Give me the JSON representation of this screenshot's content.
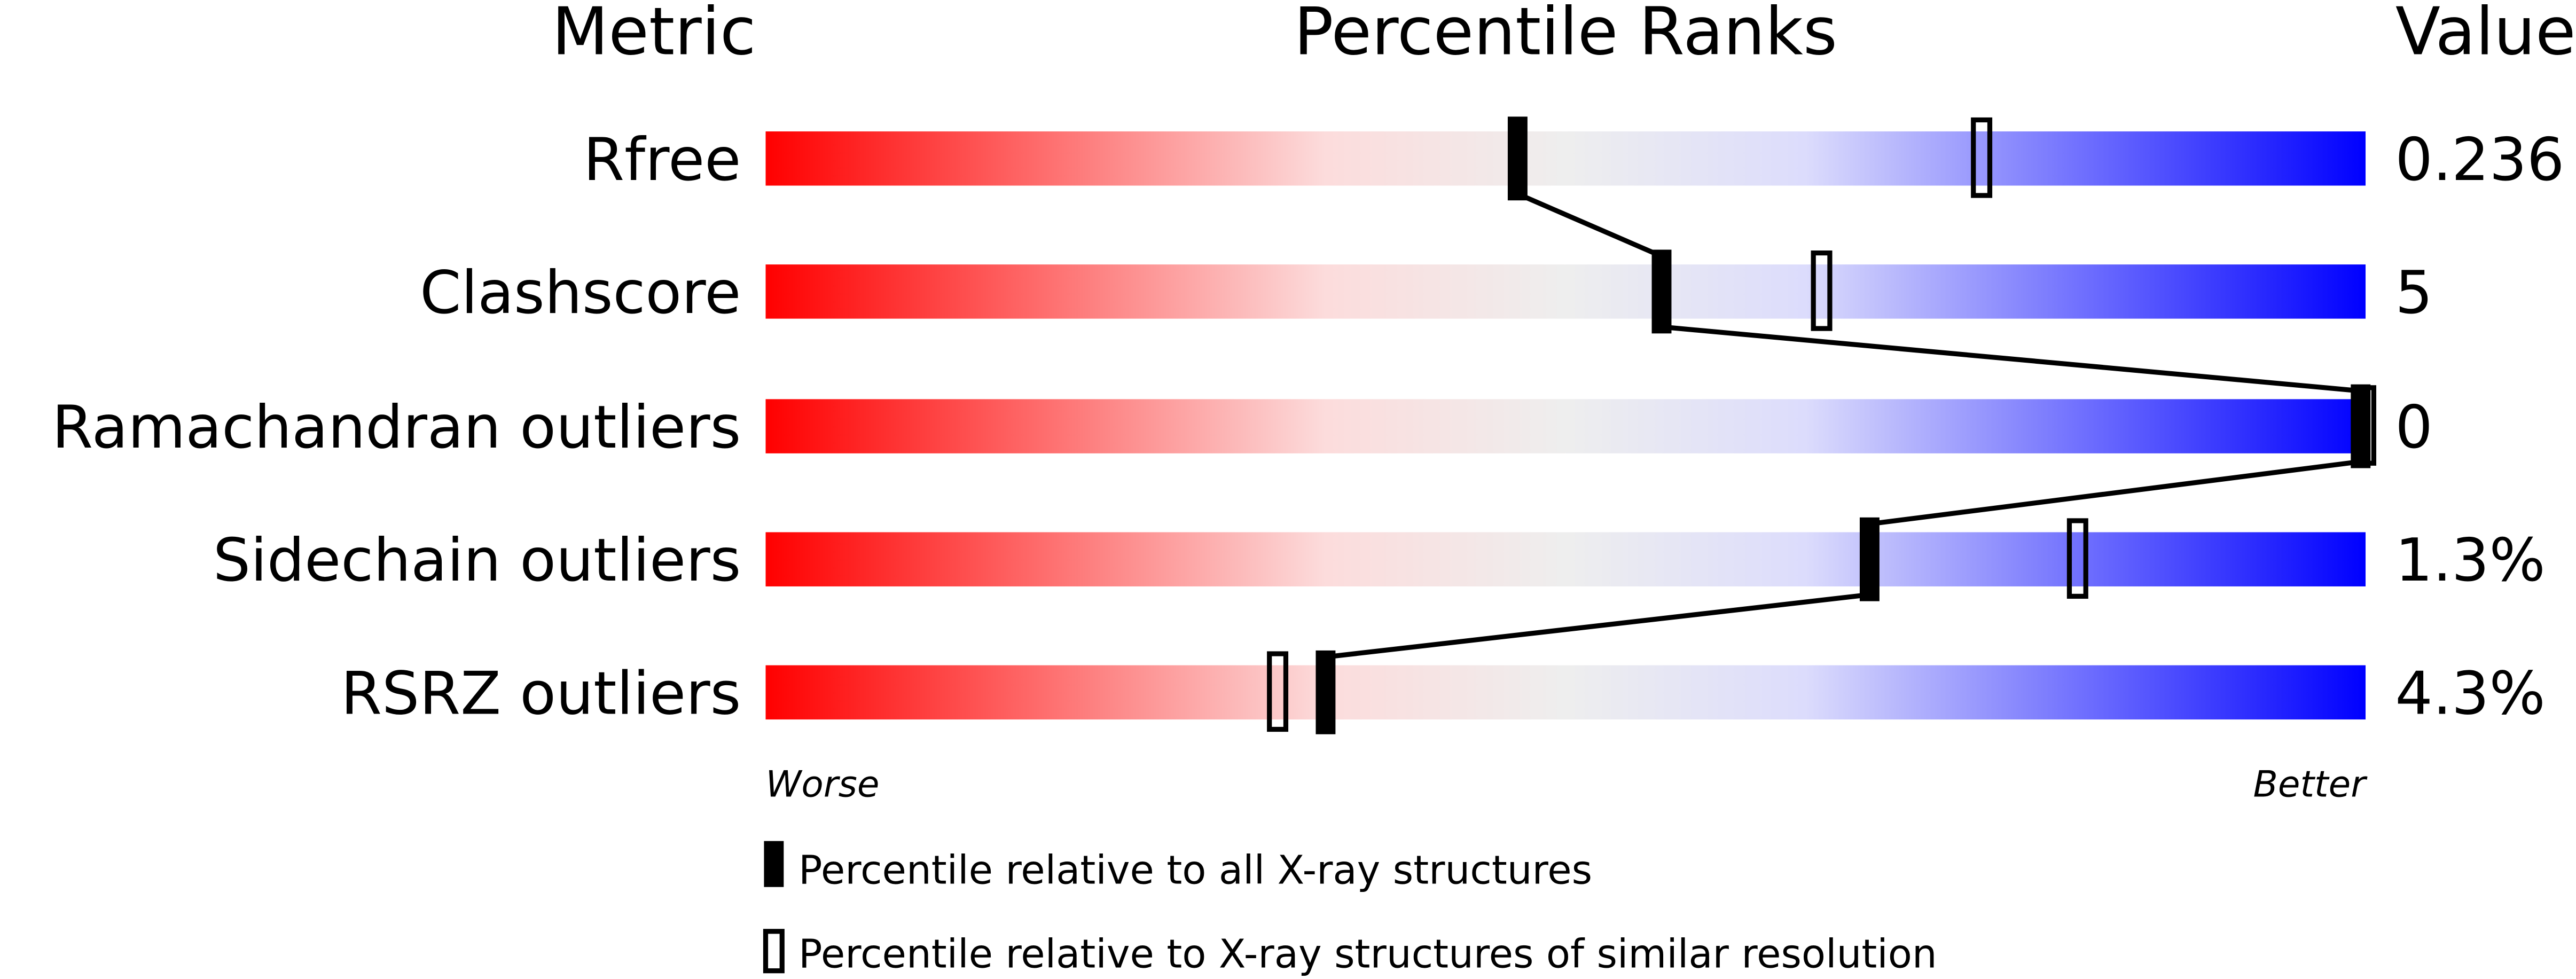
{
  "chart_data": {
    "type": "percentile-bar",
    "headers": {
      "metric": "Metric",
      "ranks": "Percentile Ranks",
      "value": "Value"
    },
    "xlim": [
      0,
      100
    ],
    "axis_left": "Worse",
    "axis_right": "Better",
    "gradient_colors": [
      "#ff0000",
      "#fcdcdc",
      "#eeeeee",
      "#dcdcfc",
      "#0000ff"
    ],
    "metrics": [
      {
        "name": "Rfree",
        "value": "0.236",
        "percentile_all": 47,
        "percentile_similar": 76
      },
      {
        "name": "Clashscore",
        "value": "5",
        "percentile_all": 56,
        "percentile_similar": 66
      },
      {
        "name": "Ramachandran outliers",
        "value": "0",
        "percentile_all": 100,
        "percentile_similar": 100
      },
      {
        "name": "Sidechain outliers",
        "value": "1.3%",
        "percentile_all": 69,
        "percentile_similar": 82
      },
      {
        "name": "RSRZ outliers",
        "value": "4.3%",
        "percentile_all": 35,
        "percentile_similar": 32
      }
    ],
    "legend": [
      {
        "marker": "filled",
        "label": "Percentile relative to all X-ray structures"
      },
      {
        "marker": "open",
        "label": "Percentile relative to X-ray structures of similar resolution"
      }
    ]
  }
}
